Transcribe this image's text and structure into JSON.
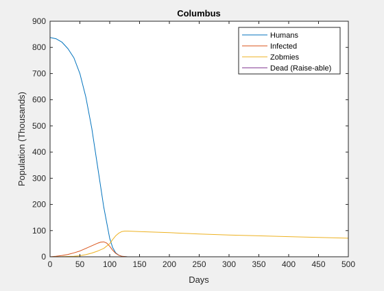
{
  "chart_data": {
    "type": "line",
    "title": "Columbus",
    "xlabel": "Days",
    "ylabel": "Population (Thousands)",
    "xlim": [
      0,
      500
    ],
    "ylim": [
      0,
      900
    ],
    "xticks": [
      0,
      50,
      100,
      150,
      200,
      250,
      300,
      350,
      400,
      450,
      500
    ],
    "yticks": [
      0,
      100,
      200,
      300,
      400,
      500,
      600,
      700,
      800,
      900
    ],
    "grid": false,
    "legend_position": "top-right",
    "series": [
      {
        "name": "Humans",
        "color": "#0072BD",
        "x": [
          0,
          10,
          20,
          30,
          40,
          50,
          60,
          70,
          80,
          90,
          100,
          105,
          110,
          115,
          120,
          125,
          130,
          140,
          150,
          200,
          300,
          400,
          500
        ],
        "y": [
          838,
          833,
          820,
          795,
          760,
          700,
          610,
          490,
          340,
          190,
          70,
          35,
          15,
          6,
          2,
          1,
          0,
          0,
          0,
          0,
          0,
          0,
          0
        ]
      },
      {
        "name": "Infected",
        "color": "#D95319",
        "x": [
          0,
          10,
          20,
          30,
          40,
          50,
          60,
          70,
          80,
          85,
          90,
          95,
          100,
          105,
          110,
          115,
          120,
          125,
          130,
          140,
          150,
          200,
          300,
          400,
          500
        ],
        "y": [
          0,
          2,
          5,
          9,
          15,
          22,
          32,
          42,
          52,
          56,
          57,
          52,
          40,
          25,
          13,
          6,
          2,
          1,
          0,
          0,
          0,
          0,
          0,
          0,
          0
        ]
      },
      {
        "name": "Zobmies",
        "color": "#EDB120",
        "x": [
          0,
          20,
          40,
          50,
          60,
          70,
          80,
          90,
          100,
          105,
          110,
          115,
          120,
          125,
          130,
          140,
          150,
          200,
          250,
          300,
          350,
          400,
          450,
          500
        ],
        "y": [
          0,
          0.5,
          2,
          4,
          8,
          14,
          22,
          32,
          50,
          66,
          80,
          90,
          96,
          98,
          98,
          97,
          96,
          92,
          87,
          83,
          80,
          77,
          74,
          71
        ]
      },
      {
        "name": "Dead (Raise-able)",
        "color": "#7E2F8E",
        "x": [
          0,
          50,
          100,
          150,
          200,
          250,
          300,
          350,
          400,
          450,
          500
        ],
        "y": [
          0,
          0,
          0,
          0,
          0,
          0,
          0,
          0,
          0,
          0,
          0
        ]
      }
    ]
  }
}
